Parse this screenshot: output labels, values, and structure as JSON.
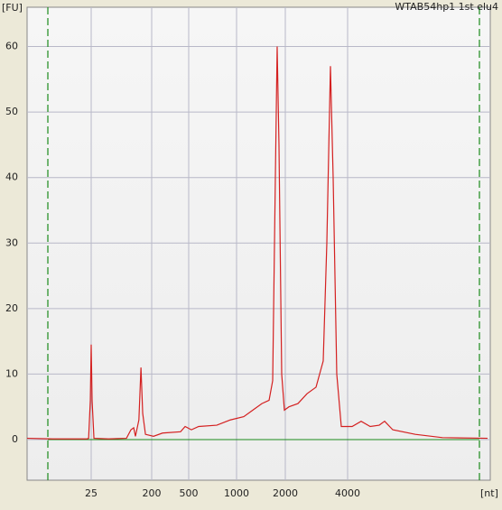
{
  "chart_data": {
    "type": "line",
    "title": "WTAB54hp1 1st elu4",
    "ylabel": "[FU]",
    "xlabel": "[nt]",
    "x": [
      10,
      16,
      24,
      24.4,
      24.8,
      25,
      27.6,
      33,
      75,
      127,
      140,
      148,
      153,
      163,
      169,
      174,
      182,
      215,
      288,
      434,
      471,
      528,
      604,
      793,
      934,
      1148,
      1333,
      1519,
      1667,
      1741,
      1796,
      1833,
      1870,
      1926,
      1981,
      2116,
      2406,
      2696,
      2986,
      3217,
      3333,
      3449,
      3536,
      3652,
      3797,
      4145,
      4435,
      4726,
      5016,
      5190,
      5452,
      6177,
      7048,
      8500
    ],
    "series": [
      {
        "name": "WTAB54hp1 1st elu4",
        "color": "#d42020",
        "values": [
          0.2,
          0.1,
          0.1,
          0.2,
          6,
          14.5,
          6,
          0.2,
          0.1,
          0.2,
          1.5,
          1.8,
          0.5,
          3,
          11,
          4,
          0.8,
          0.5,
          1,
          1.2,
          2,
          1.5,
          2,
          2.2,
          3,
          3.5,
          4.5,
          5.5,
          6,
          9,
          40,
          60,
          45,
          10,
          4.5,
          5,
          5.5,
          7,
          8,
          12,
          30,
          57,
          40,
          10,
          2,
          2,
          2.8,
          2,
          2.2,
          2.8,
          1.5,
          0.8,
          0.3,
          0.2
        ]
      }
    ],
    "xlim": [
      10,
      8500
    ],
    "xticks": [
      25,
      200,
      500,
      1000,
      2000,
      4000
    ],
    "ylim": [
      -6.2,
      66
    ],
    "yticks": [
      0,
      10,
      20,
      30,
      40,
      50,
      60
    ],
    "grid": true
  }
}
